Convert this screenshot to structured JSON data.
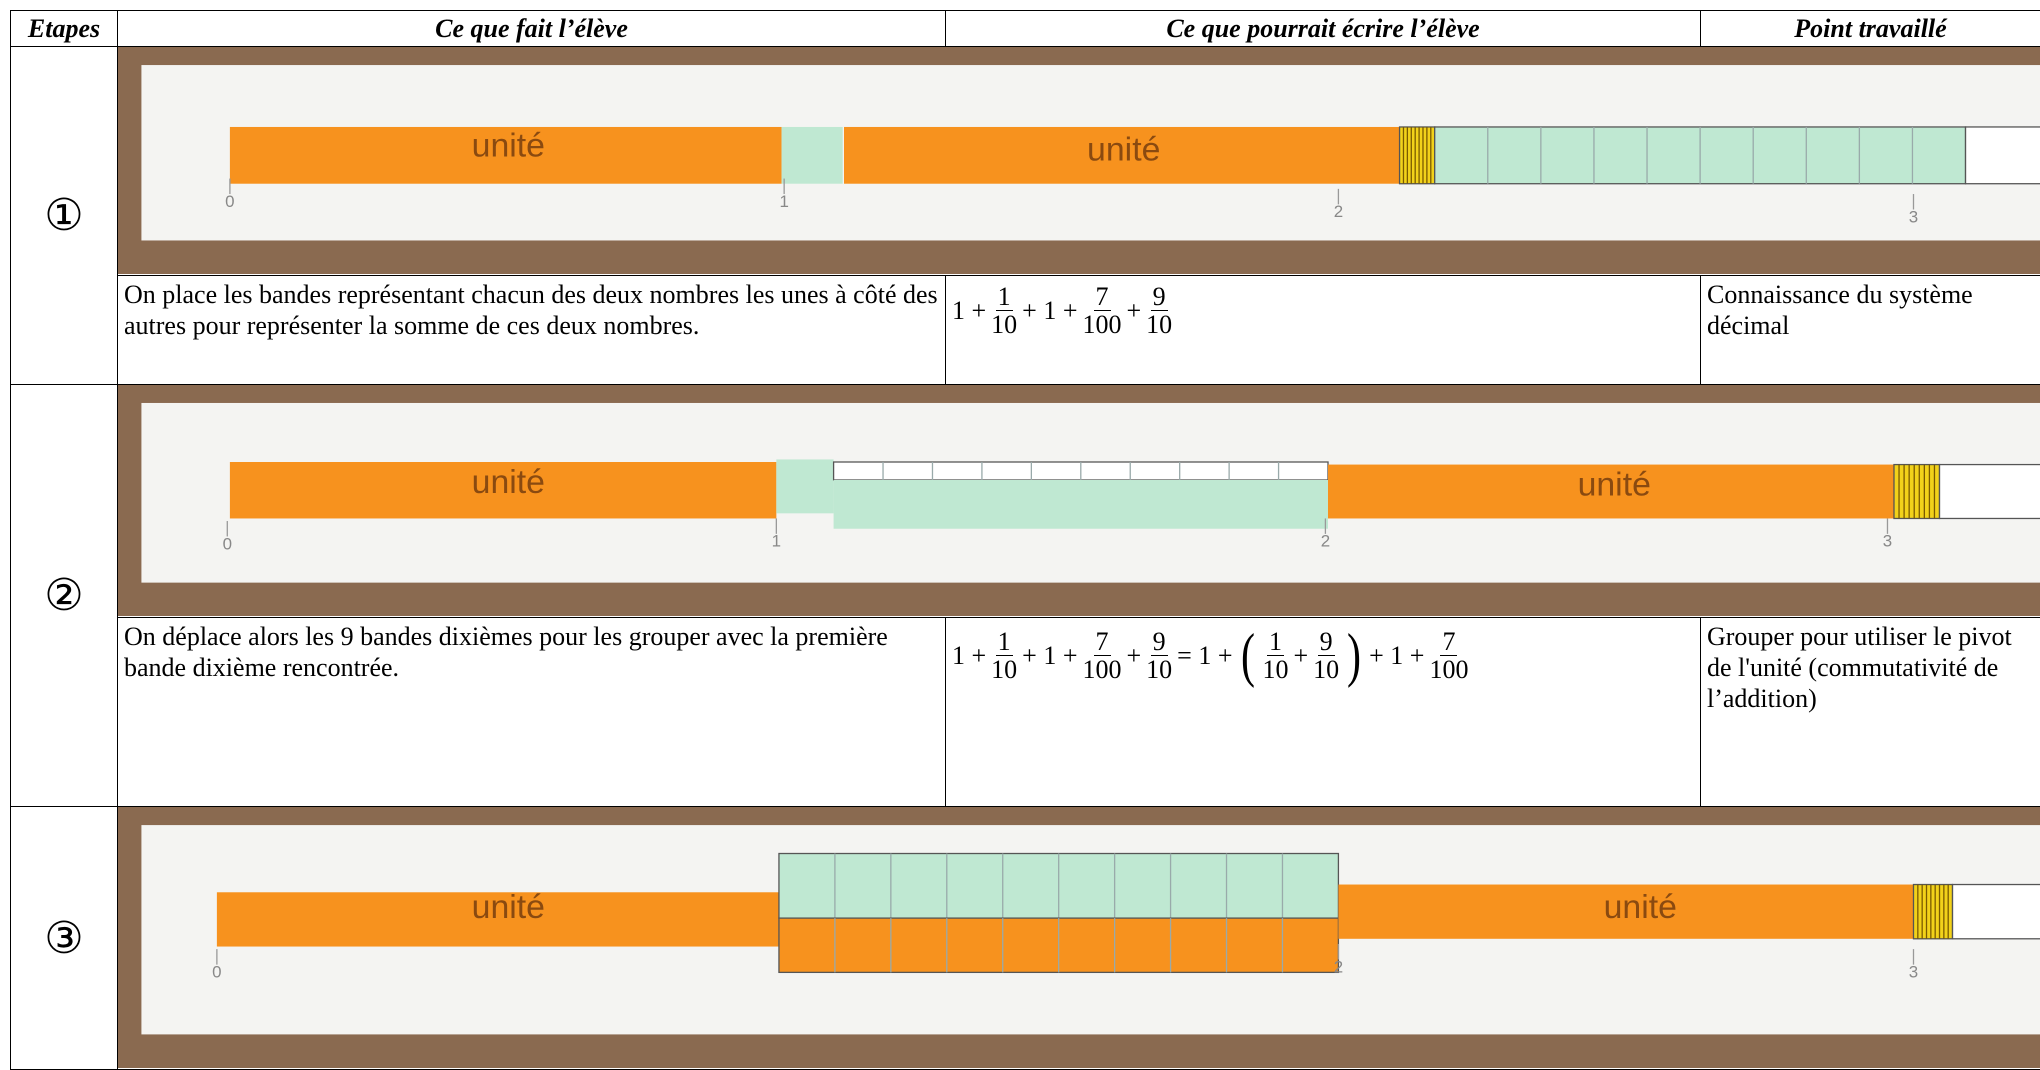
{
  "header": {
    "columns": [
      "Etapes",
      "Ce que fait l’élève",
      "Ce que pourrait écrire l’élève",
      "Point travaillé"
    ]
  },
  "steps": [
    {
      "marker": "①",
      "photo": {
        "labels": [
          "unité",
          "unité"
        ],
        "ticks": [
          "0",
          "1",
          "2",
          "3"
        ]
      },
      "action": "On place les bandes représentant chacun des deux nombres les unes à côté des autres pour représenter la somme de ces deux nombres.",
      "formula": [
        "1 +",
        {
          "num": "1",
          "den": "10"
        },
        "+ 1 +",
        {
          "num": "7",
          "den": "100"
        },
        "+",
        {
          "num": "9",
          "den": "10"
        }
      ],
      "point": "Connaissance du système décimal"
    },
    {
      "marker": "②",
      "photo": {
        "labels": [
          "unité",
          "unité"
        ],
        "ticks": [
          "0",
          "1",
          "2",
          "3"
        ]
      },
      "action": "On déplace alors les 9 bandes dixièmes pour les grouper avec la première bande dixième rencontrée.",
      "formula": [
        "1 +",
        {
          "num": "1",
          "den": "10"
        },
        "+ 1 +",
        {
          "num": "7",
          "den": "100"
        },
        "+",
        {
          "num": "9",
          "den": "10"
        },
        "= 1 +",
        "(",
        {
          "num": "1",
          "den": "10"
        },
        "+",
        {
          "num": "9",
          "den": "10"
        },
        ")",
        "+ 1 +",
        {
          "num": "7",
          "den": "100"
        }
      ],
      "point": "Grouper pour utiliser le pivot de l'unité (commutativité de l’addition)"
    },
    {
      "marker": "③",
      "photo": {
        "labels": [
          "unité",
          "unité"
        ],
        "ticks": [
          "0",
          "2",
          "3"
        ]
      }
    }
  ]
}
